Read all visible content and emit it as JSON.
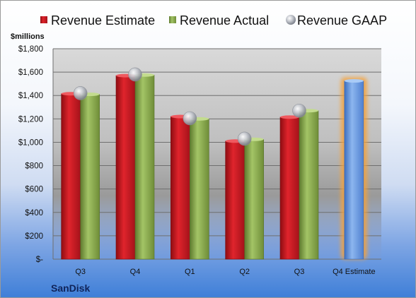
{
  "chart_data": {
    "type": "bar",
    "unit_label": "$millions",
    "company": "SanDisk",
    "categories": [
      "Q3",
      "Q4",
      "Q1",
      "Q2",
      "Q3",
      "Q4 Estimate"
    ],
    "series": [
      {
        "name": "Revenue Estimate",
        "color": "#c0141c",
        "values": [
          1415,
          1570,
          1220,
          1010,
          1215,
          null
        ]
      },
      {
        "name": "Revenue Actual",
        "color": "#86a848",
        "values": [
          1410,
          1575,
          1200,
          1025,
          1270,
          1525
        ]
      },
      {
        "name": "Revenue GAAP",
        "color": "#b0b6c0",
        "marker": "sphere",
        "values": [
          1420,
          1580,
          1205,
          1030,
          1270,
          null
        ]
      }
    ],
    "estimate_bar_color": "#6d9ee0",
    "estimate_glow_color": "#f5a23a",
    "ylim": [
      0,
      1800
    ],
    "yticks": [
      0,
      200,
      400,
      600,
      800,
      1000,
      1200,
      1400,
      1600,
      1800
    ],
    "ytick_labels": [
      "$-",
      "$200",
      "$400",
      "$600",
      "$800",
      "$1,000",
      "$1,200",
      "$1,400",
      "$1,600",
      "$1,800"
    ],
    "grid": true,
    "legend_position": "top"
  }
}
